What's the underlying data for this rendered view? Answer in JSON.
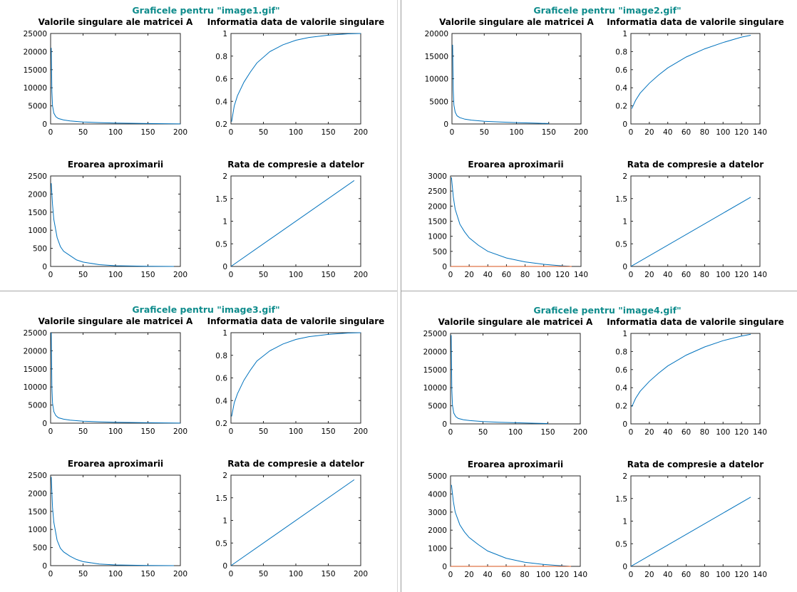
{
  "colors": {
    "title": "#0f8c8c",
    "series": "#0072bd",
    "series2": "#d95319",
    "frame": "#262626"
  },
  "chart_data": [
    {
      "figure_title": "Graficele pentru \"image1.gif\"",
      "subplots": [
        {
          "type": "line",
          "title": "Valorile singulare ale matricei A",
          "xlim": [
            0,
            200
          ],
          "ylim": [
            0,
            25000
          ],
          "xticks": [
            "0",
            "50",
            "100",
            "150",
            "200"
          ],
          "yticks": [
            "0",
            "5000",
            "10000",
            "15000",
            "20000",
            "25000"
          ],
          "series": [
            {
              "x": [
                1,
                2,
                3,
                5,
                8,
                12,
                20,
                30,
                50,
                75,
                100,
                150,
                200
              ],
              "y": [
                21000,
                9000,
                5000,
                3000,
                2000,
                1500,
                1100,
                850,
                550,
                380,
                250,
                120,
                20
              ]
            }
          ]
        },
        {
          "type": "line",
          "title": "Informatia data de valorile singulare",
          "xlim": [
            0,
            200
          ],
          "ylim": [
            0.2,
            1
          ],
          "xticks": [
            "0",
            "50",
            "100",
            "150",
            "200"
          ],
          "yticks": [
            "0.2",
            "0.4",
            "0.6",
            "0.8",
            "1"
          ],
          "series": [
            {
              "x": [
                1,
                5,
                10,
                20,
                30,
                40,
                60,
                80,
                100,
                120,
                150,
                180,
                200
              ],
              "y": [
                0.22,
                0.36,
                0.45,
                0.57,
                0.66,
                0.74,
                0.84,
                0.9,
                0.94,
                0.965,
                0.985,
                0.997,
                1.0
              ]
            }
          ]
        },
        {
          "type": "line",
          "title": "Eroarea aproximarii",
          "xlim": [
            0,
            200
          ],
          "ylim": [
            0,
            2500
          ],
          "xticks": [
            "0",
            "50",
            "100",
            "150",
            "200"
          ],
          "yticks": [
            "0",
            "500",
            "1000",
            "1500",
            "2000",
            "2500"
          ],
          "series": [
            {
              "x": [
                1,
                3,
                5,
                10,
                15,
                20,
                30,
                40,
                50,
                75,
                100,
                150,
                190
              ],
              "y": [
                2300,
                1700,
                1300,
                800,
                550,
                420,
                300,
                180,
                120,
                50,
                20,
                5,
                0
              ]
            }
          ]
        },
        {
          "type": "line",
          "title": "Rata de compresie a datelor",
          "xlim": [
            0,
            200
          ],
          "ylim": [
            0,
            2
          ],
          "xticks": [
            "0",
            "50",
            "100",
            "150",
            "200"
          ],
          "yticks": [
            "0",
            "0.5",
            "1",
            "1.5",
            "2"
          ],
          "series": [
            {
              "x": [
                0,
                190
              ],
              "y": [
                0,
                1.9
              ]
            }
          ]
        }
      ]
    },
    {
      "figure_title": "Graficele pentru \"image2.gif\"",
      "subplots": [
        {
          "type": "line",
          "title": "Valorile singulare ale matricei A",
          "xlim": [
            0,
            200
          ],
          "ylim": [
            0,
            20000
          ],
          "xticks": [
            "0",
            "50",
            "100",
            "150",
            "200"
          ],
          "yticks": [
            "0",
            "5000",
            "10000",
            "15000",
            "20000"
          ],
          "series": [
            {
              "x": [
                1,
                2,
                3,
                5,
                8,
                12,
                20,
                30,
                50,
                75,
                100,
                130,
                150
              ],
              "y": [
                17500,
                7500,
                4200,
                2600,
                1800,
                1400,
                1050,
                850,
                600,
                420,
                300,
                180,
                100
              ]
            }
          ]
        },
        {
          "type": "line",
          "title": "Informatia data de valorile singulare",
          "xlim": [
            0,
            140
          ],
          "ylim": [
            0,
            1
          ],
          "xticks": [
            "0",
            "20",
            "40",
            "60",
            "80",
            "100",
            "120",
            "140"
          ],
          "yticks": [
            "0",
            "0.2",
            "0.4",
            "0.6",
            "0.8",
            "1"
          ],
          "series": [
            {
              "x": [
                1,
                5,
                10,
                20,
                30,
                40,
                60,
                80,
                100,
                120,
                130
              ],
              "y": [
                0.17,
                0.26,
                0.34,
                0.45,
                0.54,
                0.62,
                0.74,
                0.83,
                0.9,
                0.96,
                0.98
              ]
            }
          ]
        },
        {
          "type": "line",
          "title": "Eroarea aproximarii",
          "xlim": [
            0,
            140
          ],
          "ylim": [
            0,
            3000
          ],
          "xticks": [
            "0",
            "20",
            "40",
            "60",
            "80",
            "100",
            "120",
            "140"
          ],
          "yticks": [
            "0",
            "500",
            "1000",
            "1500",
            "2000",
            "2500",
            "3000"
          ],
          "series": [
            {
              "x": [
                1,
                3,
                5,
                10,
                15,
                20,
                30,
                40,
                60,
                80,
                100,
                120,
                128
              ],
              "y": [
                2950,
                2300,
                1900,
                1400,
                1150,
                950,
                700,
                500,
                280,
                150,
                70,
                20,
                5
              ]
            },
            {
              "x": [
                0,
                130
              ],
              "y": [
                0,
                0
              ]
            }
          ]
        },
        {
          "type": "line",
          "title": "Rata de compresie a datelor",
          "xlim": [
            0,
            140
          ],
          "ylim": [
            0,
            2
          ],
          "xticks": [
            "0",
            "20",
            "40",
            "60",
            "80",
            "100",
            "120",
            "140"
          ],
          "yticks": [
            "0",
            "0.5",
            "1",
            "1.5",
            "2"
          ],
          "series": [
            {
              "x": [
                0,
                130
              ],
              "y": [
                0,
                1.53
              ]
            }
          ]
        }
      ]
    },
    {
      "figure_title": "Graficele pentru \"image3.gif\"",
      "subplots": [
        {
          "type": "line",
          "title": "Valorile singulare ale matricei A",
          "xlim": [
            0,
            200
          ],
          "ylim": [
            0,
            25000
          ],
          "xticks": [
            "0",
            "50",
            "100",
            "150",
            "200"
          ],
          "yticks": [
            "0",
            "5000",
            "10000",
            "15000",
            "20000",
            "25000"
          ],
          "series": [
            {
              "x": [
                1,
                2,
                3,
                5,
                8,
                12,
                20,
                30,
                50,
                75,
                100,
                150,
                200
              ],
              "y": [
                25000,
                10000,
                5500,
                3200,
                2100,
                1500,
                1100,
                850,
                550,
                380,
                250,
                120,
                20
              ]
            }
          ]
        },
        {
          "type": "line",
          "title": "Informatia data de valorile singulare",
          "xlim": [
            0,
            200
          ],
          "ylim": [
            0.2,
            1
          ],
          "xticks": [
            "0",
            "50",
            "100",
            "150",
            "200"
          ],
          "yticks": [
            "0.2",
            "0.4",
            "0.6",
            "0.8",
            "1"
          ],
          "series": [
            {
              "x": [
                1,
                5,
                10,
                20,
                30,
                40,
                60,
                80,
                100,
                120,
                150,
                180,
                200
              ],
              "y": [
                0.26,
                0.38,
                0.46,
                0.58,
                0.67,
                0.75,
                0.84,
                0.9,
                0.94,
                0.965,
                0.985,
                0.997,
                1.0
              ]
            }
          ]
        },
        {
          "type": "line",
          "title": "Eroarea aproximarii",
          "xlim": [
            0,
            200
          ],
          "ylim": [
            0,
            2500
          ],
          "xticks": [
            "0",
            "50",
            "100",
            "150",
            "200"
          ],
          "yticks": [
            "0",
            "500",
            "1000",
            "1500",
            "2000",
            "2500"
          ],
          "series": [
            {
              "x": [
                1,
                3,
                5,
                10,
                15,
                20,
                30,
                40,
                50,
                75,
                100,
                150,
                190
              ],
              "y": [
                2450,
                1600,
                1200,
                700,
                480,
                380,
                260,
                170,
                110,
                45,
                20,
                5,
                0
              ]
            }
          ]
        },
        {
          "type": "line",
          "title": "Rata de compresie a datelor",
          "xlim": [
            0,
            200
          ],
          "ylim": [
            0,
            2
          ],
          "xticks": [
            "0",
            "50",
            "100",
            "150",
            "200"
          ],
          "yticks": [
            "0",
            "0.5",
            "1",
            "1.5",
            "2"
          ],
          "series": [
            {
              "x": [
                0,
                190
              ],
              "y": [
                0,
                1.9
              ]
            }
          ]
        }
      ]
    },
    {
      "figure_title": "Graficele pentru \"image4.gif\"",
      "subplots": [
        {
          "type": "line",
          "title": "Valorile singulare ale matricei A",
          "xlim": [
            0,
            200
          ],
          "ylim": [
            0,
            25000
          ],
          "xticks": [
            "0",
            "50",
            "100",
            "150",
            "200"
          ],
          "yticks": [
            "0",
            "5000",
            "10000",
            "15000",
            "20000",
            "25000"
          ],
          "series": [
            {
              "x": [
                1,
                2,
                3,
                5,
                8,
                12,
                20,
                30,
                50,
                75,
                100,
                130,
                150
              ],
              "y": [
                24500,
                9500,
                5200,
                3000,
                2000,
                1500,
                1150,
                900,
                650,
                450,
                320,
                180,
                100
              ]
            }
          ]
        },
        {
          "type": "line",
          "title": "Informatia data de valorile singulare",
          "xlim": [
            0,
            140
          ],
          "ylim": [
            0,
            1
          ],
          "xticks": [
            "0",
            "20",
            "40",
            "60",
            "80",
            "100",
            "120",
            "140"
          ],
          "yticks": [
            "0",
            "0.2",
            "0.4",
            "0.6",
            "0.8",
            "1"
          ],
          "series": [
            {
              "x": [
                1,
                5,
                10,
                20,
                30,
                40,
                60,
                80,
                100,
                120,
                130
              ],
              "y": [
                0.19,
                0.28,
                0.36,
                0.47,
                0.56,
                0.64,
                0.76,
                0.85,
                0.92,
                0.97,
                0.99
              ]
            }
          ]
        },
        {
          "type": "line",
          "title": "Eroarea aproximarii",
          "xlim": [
            0,
            140
          ],
          "ylim": [
            0,
            5000
          ],
          "xticks": [
            "0",
            "20",
            "40",
            "60",
            "80",
            "100",
            "120",
            "140"
          ],
          "yticks": [
            "0",
            "1000",
            "2000",
            "3000",
            "4000",
            "5000"
          ],
          "series": [
            {
              "x": [
                1,
                3,
                5,
                10,
                15,
                20,
                30,
                40,
                60,
                80,
                100,
                120,
                128
              ],
              "y": [
                4500,
                3600,
                3000,
                2300,
                1900,
                1600,
                1200,
                850,
                450,
                230,
                110,
                30,
                5
              ]
            },
            {
              "x": [
                0,
                130
              ],
              "y": [
                0,
                0
              ]
            }
          ]
        },
        {
          "type": "line",
          "title": "Rata de compresie a datelor",
          "xlim": [
            0,
            140
          ],
          "ylim": [
            0,
            2
          ],
          "xticks": [
            "0",
            "20",
            "40",
            "60",
            "80",
            "100",
            "120",
            "140"
          ],
          "yticks": [
            "0",
            "0.5",
            "1",
            "1.5",
            "2"
          ],
          "series": [
            {
              "x": [
                0,
                130
              ],
              "y": [
                0,
                1.53
              ]
            }
          ]
        }
      ]
    }
  ]
}
